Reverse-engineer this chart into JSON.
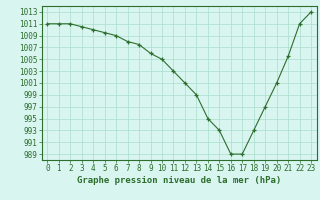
{
  "x": [
    0,
    1,
    2,
    3,
    4,
    5,
    6,
    7,
    8,
    9,
    10,
    11,
    12,
    13,
    14,
    15,
    16,
    17,
    18,
    19,
    20,
    21,
    22,
    23
  ],
  "y": [
    1011,
    1011,
    1011,
    1010.5,
    1010,
    1009.5,
    1009,
    1008,
    1007.5,
    1006,
    1005,
    1003,
    1001,
    999,
    995,
    993,
    989,
    989,
    993,
    997,
    1001,
    1005.5,
    1011,
    1013
  ],
  "line_color": "#2d6e2d",
  "marker_color": "#2d6e2d",
  "bg_color": "#d8f5f0",
  "grid_color": "#aaddcc",
  "xlabel": "Graphe pression niveau de la mer (hPa)",
  "xlabel_color": "#2d6e2d",
  "ylabel_ticks": [
    989,
    991,
    993,
    995,
    997,
    999,
    1001,
    1003,
    1005,
    1007,
    1009,
    1011,
    1013
  ],
  "ylim": [
    988,
    1014
  ],
  "xlim": [
    -0.5,
    23.5
  ],
  "xticks": [
    0,
    1,
    2,
    3,
    4,
    5,
    6,
    7,
    8,
    9,
    10,
    11,
    12,
    13,
    14,
    15,
    16,
    17,
    18,
    19,
    20,
    21,
    22,
    23
  ],
  "tick_color": "#2d6e2d",
  "tick_fontsize": 5.5,
  "xlabel_fontsize": 6.5
}
